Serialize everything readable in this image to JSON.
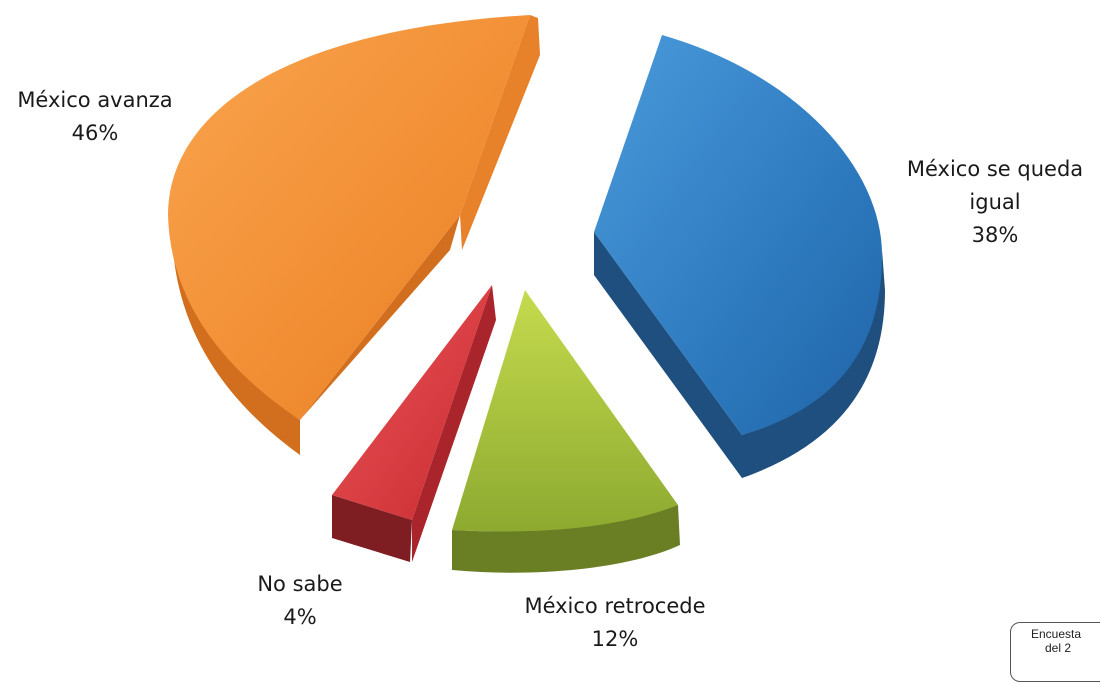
{
  "chart_data": {
    "type": "pie",
    "title": "",
    "slices": [
      {
        "label": "México avanza",
        "value": 46,
        "percent_label": "46%",
        "color": "#F0862F"
      },
      {
        "label": "México se queda igual",
        "value": 38,
        "percent_label": "38%",
        "color": "#2E7ABF"
      },
      {
        "label": "México retrocede",
        "value": 12,
        "percent_label": "12%",
        "color": "#8FAA3A"
      },
      {
        "label": "No sabe",
        "value": 4,
        "percent_label": "4%",
        "color": "#D0343A"
      }
    ],
    "style": "3d-exploded",
    "legend": "none"
  },
  "source_note": {
    "line1": "Encuesta",
    "line2": "del 2"
  }
}
